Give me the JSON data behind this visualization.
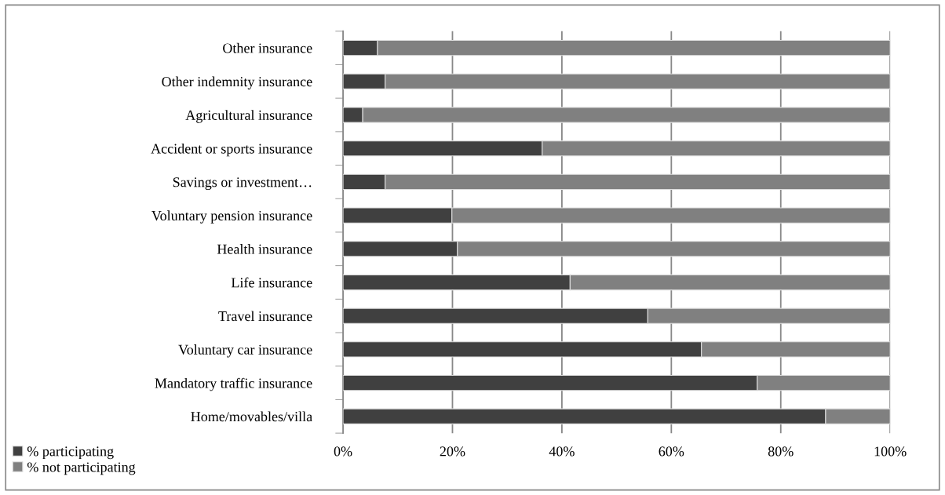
{
  "chart_data": {
    "type": "bar",
    "orientation": "horizontal",
    "stacked": true,
    "categories": [
      "Other insurance",
      "Other indemnity insurance",
      "Agricultural insurance",
      "Accident or sports insurance",
      "Savings or investment…",
      "Voluntary pension insurance",
      "Health insurance",
      "Life insurance",
      "Travel insurance",
      "Voluntary car insurance",
      "Mandatory traffic insurance",
      "Home/movables/villa"
    ],
    "series": [
      {
        "name": "% participating",
        "color": "#404040",
        "values": [
          6.3,
          7.7,
          3.6,
          36.4,
          7.7,
          19.9,
          20.9,
          41.5,
          55.7,
          65.5,
          75.7,
          88.2
        ]
      },
      {
        "name": "% not participating",
        "color": "#808080",
        "values": [
          93.7,
          92.3,
          96.4,
          63.6,
          92.3,
          80.1,
          79.1,
          58.5,
          44.3,
          34.5,
          24.3,
          11.8
        ]
      }
    ],
    "xlim": [
      0,
      100
    ],
    "xticks": [
      {
        "value": 0,
        "label": "0%"
      },
      {
        "value": 20,
        "label": "20%"
      },
      {
        "value": 40,
        "label": "40%"
      },
      {
        "value": 60,
        "label": "60%"
      },
      {
        "value": 80,
        "label": "80%"
      },
      {
        "value": 100,
        "label": "100%"
      }
    ],
    "grid": "x",
    "legend": "bottom left"
  }
}
